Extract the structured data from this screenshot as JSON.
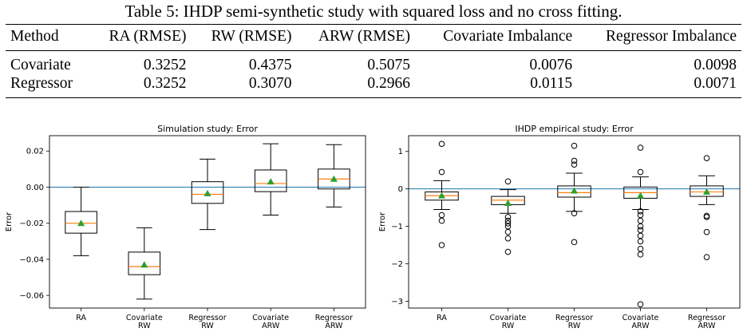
{
  "caption": "Table 5: IHDP semi-synthetic study with squared loss and no cross fitting.",
  "table": {
    "headers": [
      "Method",
      "RA (RMSE)",
      "RW (RMSE)",
      "ARW (RMSE)",
      "Covariate Imbalance",
      "Regressor Imbalance"
    ],
    "rows": [
      [
        "Covariate",
        "0.3252",
        "0.4375",
        "0.5075",
        "0.0076",
        "0.0098"
      ],
      [
        "Regressor",
        "0.3252",
        "0.3070",
        "0.2966",
        "0.0115",
        "0.0071"
      ]
    ]
  },
  "chart_data": [
    {
      "type": "box",
      "title": "Simulation study: Error",
      "ylabel": "Error",
      "ylim": [
        -0.067,
        0.0285
      ],
      "yticks": [
        0.02,
        0.0,
        -0.02,
        -0.04,
        -0.06
      ],
      "ytick_labels": [
        "0.02",
        "0.00",
        "−0.02",
        "−0.04",
        "−0.06"
      ],
      "reference_line": 0,
      "categories": [
        "RA",
        "Covariate\nRW",
        "Regressor\nRW",
        "Covariate\nARW",
        "Regressor\nARW"
      ],
      "boxes": [
        {
          "whisker_low": -0.038,
          "q1": -0.0255,
          "median": -0.02,
          "q3": -0.0135,
          "whisker_high": 0.0,
          "mean": -0.02,
          "outliers": []
        },
        {
          "whisker_low": -0.062,
          "q1": -0.0485,
          "median": -0.044,
          "q3": -0.036,
          "whisker_high": -0.0225,
          "mean": -0.043,
          "outliers": []
        },
        {
          "whisker_low": -0.0235,
          "q1": -0.009,
          "median": -0.004,
          "q3": 0.003,
          "whisker_high": 0.0155,
          "mean": -0.0035,
          "outliers": []
        },
        {
          "whisker_low": -0.0155,
          "q1": -0.0025,
          "median": 0.002,
          "q3": 0.0095,
          "whisker_high": 0.024,
          "mean": 0.003,
          "outliers": []
        },
        {
          "whisker_low": -0.011,
          "q1": -0.001,
          "median": 0.0045,
          "q3": 0.01,
          "whisker_high": 0.0235,
          "mean": 0.0045,
          "outliers": []
        }
      ]
    },
    {
      "type": "box",
      "title": "IHDP empirical study: Error",
      "ylabel": "Error",
      "ylim": [
        -3.18,
        1.42
      ],
      "yticks": [
        1,
        0,
        -1,
        -2,
        -3
      ],
      "ytick_labels": [
        "1",
        "0",
        "−1",
        "−2",
        "−3"
      ],
      "reference_line": 0,
      "categories": [
        "RA",
        "Covariate\nRW",
        "Regressor\nRW",
        "Covariate\nARW",
        "Regressor\nARW"
      ],
      "boxes": [
        {
          "whisker_low": -0.55,
          "q1": -0.3,
          "median": -0.18,
          "q3": -0.08,
          "whisker_high": 0.22,
          "mean": -0.18,
          "outliers": [
            1.2,
            0.45,
            -0.7,
            -0.85,
            -1.5
          ]
        },
        {
          "whisker_low": -0.65,
          "q1": -0.42,
          "median": -0.3,
          "q3": -0.2,
          "whisker_high": -0.02,
          "mean": -0.38,
          "outliers": [
            0.2,
            -0.75,
            -0.85,
            -0.92,
            -1.0,
            -1.15,
            -1.32,
            -1.68
          ]
        },
        {
          "whisker_low": -0.6,
          "q1": -0.22,
          "median": -0.1,
          "q3": 0.08,
          "whisker_high": 0.42,
          "mean": -0.05,
          "outliers": [
            1.15,
            0.75,
            0.65,
            -0.65,
            -1.42
          ]
        },
        {
          "whisker_low": -0.55,
          "q1": -0.25,
          "median": -0.1,
          "q3": 0.05,
          "whisker_high": 0.32,
          "mean": -0.18,
          "outliers": [
            1.1,
            0.45,
            -0.6,
            -0.7,
            -0.85,
            -1.0,
            -1.1,
            -1.25,
            -1.4,
            -1.6,
            -1.75,
            -3.08
          ]
        },
        {
          "whisker_low": -0.42,
          "q1": -0.2,
          "median": -0.08,
          "q3": 0.08,
          "whisker_high": 0.35,
          "mean": -0.08,
          "outliers": [
            0.82,
            -0.72,
            -0.75,
            -1.15,
            -1.82
          ]
        }
      ]
    }
  ],
  "colors": {
    "box": "#000000",
    "median": "#ff7f0e",
    "mean": "#2ca02c",
    "reference": "#1f77b4"
  }
}
